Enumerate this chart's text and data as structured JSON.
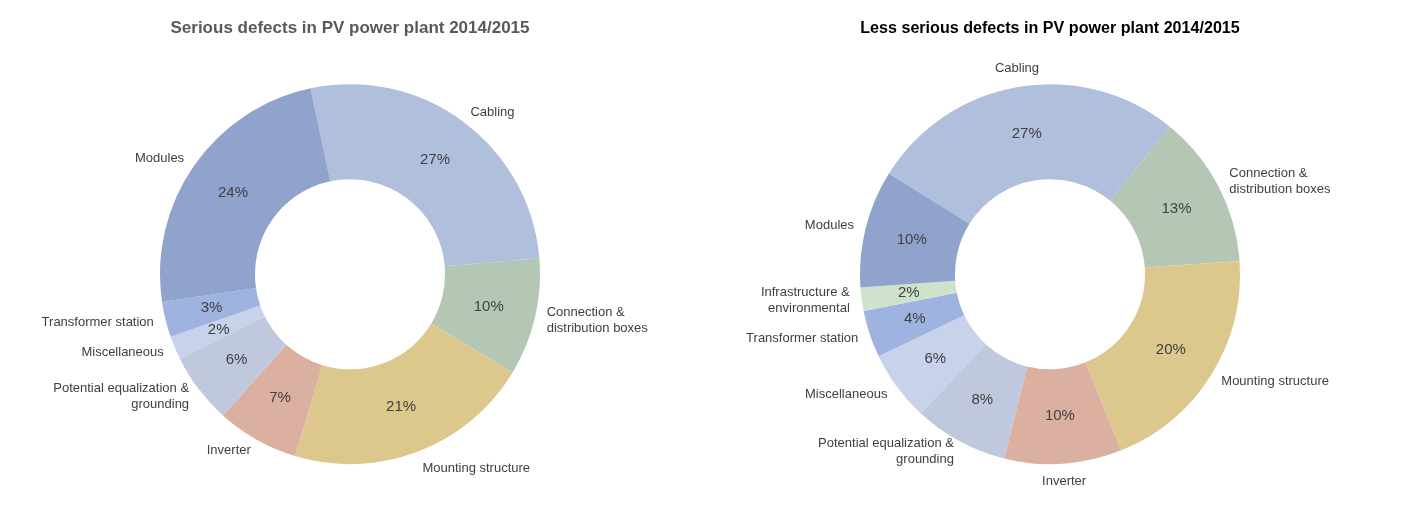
{
  "chart_data": [
    {
      "type": "donut",
      "title": "Serious defects in PV power plant 2014/2015",
      "categories": [
        "Cabling",
        "Connection & distribution boxes",
        "Mounting structure",
        "Inverter",
        "Potential equalization & grounding",
        "Miscellaneous",
        "Transformer station",
        "Modules"
      ],
      "values": [
        27,
        10,
        21,
        7,
        6,
        2,
        3,
        24
      ],
      "value_labels": [
        "27%",
        "10%",
        "21%",
        "7%",
        "6%",
        "2%",
        "3%",
        "24%"
      ],
      "colors": [
        "#b0bfdb",
        "#b3c7b4",
        "#dcc88c",
        "#dcb0a0",
        "#c0c8de",
        "#c8d2ea",
        "#9fb3e0",
        "#8fa3cc"
      ]
    },
    {
      "type": "donut",
      "title": "Less serious defects in PV power plant 2014/2015",
      "categories": [
        "Cabling",
        "Connection & distribution boxes",
        "Mounting structure",
        "Inverter",
        "Potential equalization & grounding",
        "Miscellaneous",
        "Transformer station",
        "Infrastructure & environmental",
        "Modules"
      ],
      "values": [
        27,
        13,
        20,
        10,
        8,
        6,
        4,
        2,
        10
      ],
      "value_labels": [
        "27%",
        "13%",
        "20%",
        "10%",
        "8%",
        "6%",
        "4%",
        "2%",
        "10%"
      ],
      "colors": [
        "#b0bfdb",
        "#b3c7b4",
        "#dcc88c",
        "#dcb0a0",
        "#c0c8de",
        "#c8d2ea",
        "#9fb3e0",
        "#cfe3cc",
        "#8fa3cc"
      ]
    }
  ]
}
